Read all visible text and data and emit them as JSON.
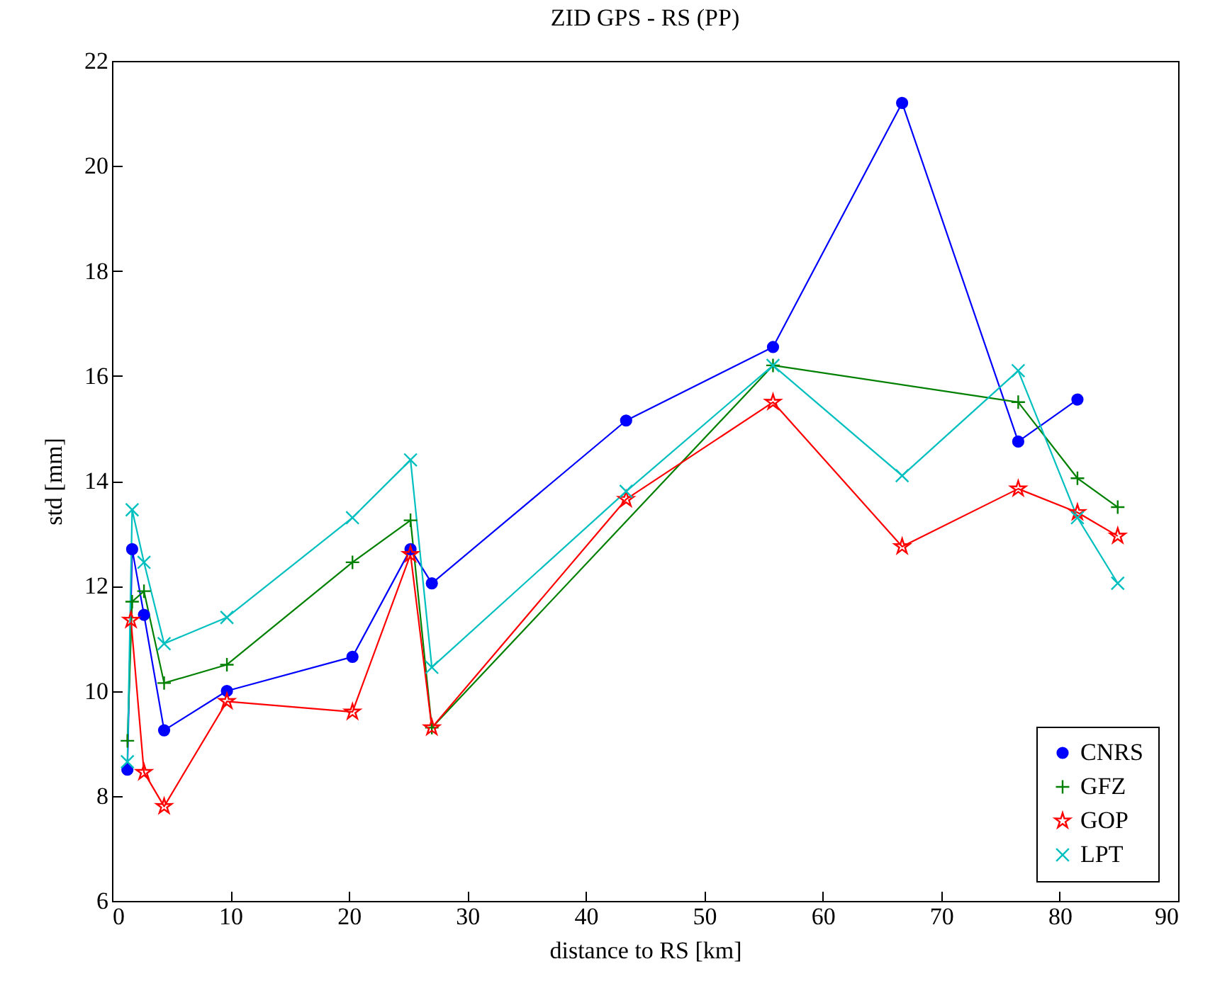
{
  "chart_data": {
    "type": "line",
    "title": "ZID GPS - RS (PP)",
    "xlabel": "distance to RS [km]",
    "ylabel": "std [mm]",
    "xlim": [
      0,
      90
    ],
    "xticks": [
      0,
      10,
      20,
      30,
      40,
      50,
      60,
      70,
      80,
      90
    ],
    "ylim": [
      6,
      22
    ],
    "yticks": [
      6,
      8,
      10,
      12,
      14,
      16,
      18,
      20,
      22
    ],
    "grid": false,
    "legend": "bottom right",
    "line_style": "solid",
    "series": [
      {
        "name": "CNRS",
        "color": "#0000ff",
        "marker": "circle",
        "x": [
          1.3,
          1.7,
          2.7,
          4.4,
          9.7,
          20.3,
          25.2,
          27.0,
          43.4,
          55.8,
          66.7,
          76.5,
          81.5
        ],
        "values": [
          8.5,
          12.7,
          11.45,
          9.25,
          10.0,
          10.65,
          12.7,
          12.05,
          15.15,
          16.55,
          21.2,
          14.75,
          15.55
        ]
      },
      {
        "name": "GFZ",
        "color": "#008000",
        "marker": "cross",
        "x": [
          1.3,
          1.7,
          2.7,
          4.4,
          9.7,
          20.3,
          25.2,
          27.0,
          55.8,
          76.5,
          81.5,
          84.9
        ],
        "values": [
          9.05,
          11.7,
          11.9,
          10.15,
          10.5,
          12.45,
          13.25,
          9.3,
          16.2,
          15.5,
          14.05,
          13.5
        ]
      },
      {
        "name": "GOP",
        "color": "#ff0000",
        "marker": "star",
        "x": [
          1.6,
          2.7,
          4.4,
          9.7,
          20.3,
          25.2,
          27.0,
          43.4,
          55.8,
          66.7,
          76.5,
          81.5,
          84.9
        ],
        "values": [
          11.35,
          8.45,
          7.8,
          9.8,
          9.6,
          12.6,
          9.3,
          13.65,
          15.5,
          12.75,
          13.85,
          13.4,
          12.95
        ]
      },
      {
        "name": "LPT",
        "color": "#00bfbf",
        "marker": "x",
        "x": [
          1.3,
          1.7,
          2.7,
          4.4,
          9.7,
          20.3,
          25.2,
          27.0,
          43.4,
          55.8,
          66.7,
          76.5,
          81.5,
          84.9
        ],
        "values": [
          8.65,
          13.45,
          12.45,
          10.9,
          11.4,
          13.3,
          14.4,
          10.45,
          13.8,
          16.2,
          14.1,
          16.1,
          13.3,
          12.05
        ]
      }
    ]
  }
}
